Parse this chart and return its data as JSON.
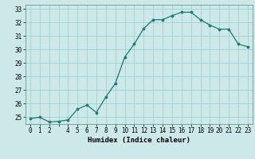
{
  "x": [
    0,
    1,
    2,
    3,
    4,
    5,
    6,
    7,
    8,
    9,
    10,
    11,
    12,
    13,
    14,
    15,
    16,
    17,
    18,
    19,
    20,
    21,
    22,
    23
  ],
  "y": [
    24.9,
    25.0,
    24.65,
    24.7,
    24.8,
    25.6,
    25.9,
    25.35,
    26.5,
    27.5,
    29.45,
    30.4,
    31.55,
    32.2,
    32.2,
    32.5,
    32.75,
    32.75,
    32.2,
    31.8,
    31.5,
    31.5,
    30.4,
    30.2
  ],
  "line_color": "#1a7a6e",
  "marker_color": "#1a7a6e",
  "bg_color": "#cce8e8",
  "grid_color": "#99cccc",
  "xlabel": "Humidex (Indice chaleur)",
  "ylim": [
    24.5,
    33.3
  ],
  "xlim": [
    -0.5,
    23.5
  ],
  "yticks": [
    25,
    26,
    27,
    28,
    29,
    30,
    31,
    32,
    33
  ],
  "xtick_labels": [
    "0",
    "1",
    "2",
    "",
    "4",
    "5",
    "6",
    "7",
    "8",
    "9",
    "10",
    "11",
    "12",
    "13",
    "14",
    "15",
    "16",
    "17",
    "18",
    "19",
    "20",
    "21",
    "22",
    "23"
  ],
  "label_fontsize": 6.5,
  "tick_fontsize": 5.5
}
